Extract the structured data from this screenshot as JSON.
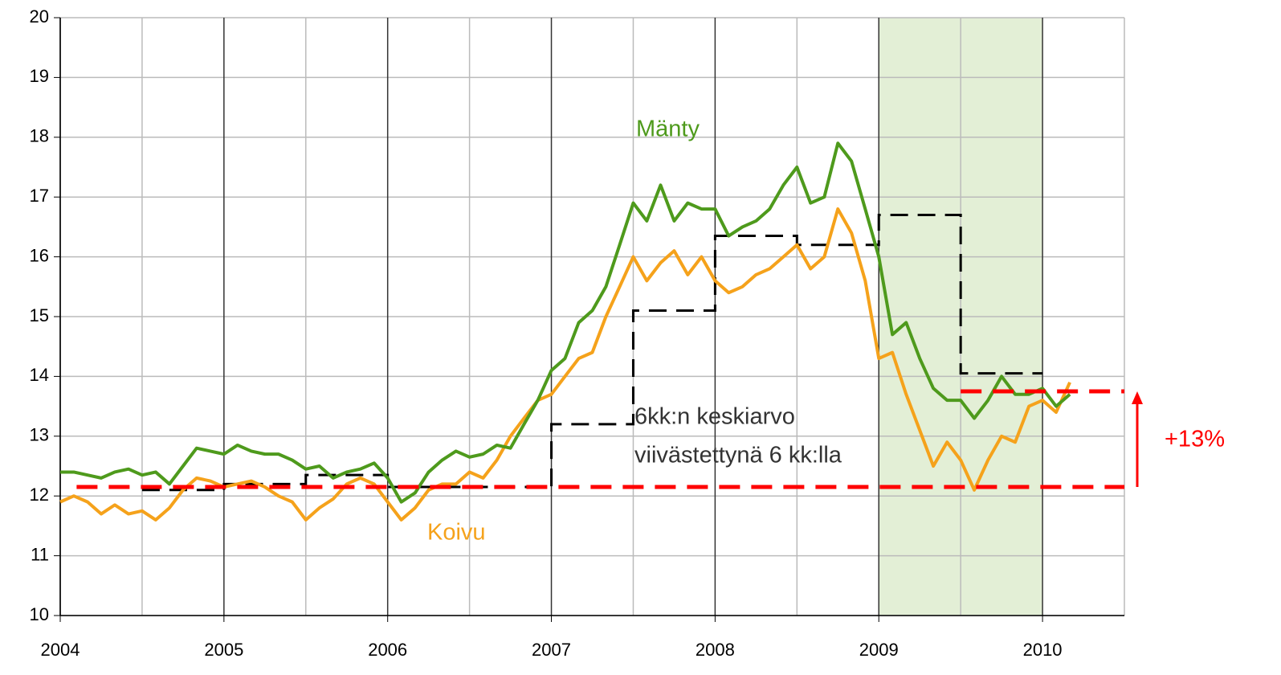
{
  "chart_data": {
    "type": "line",
    "xlim": [
      2004,
      2010.5
    ],
    "xticks": [
      2004,
      2005,
      2006,
      2007,
      2008,
      2009,
      2010
    ],
    "xminorticks": [
      2004.5,
      2005.5,
      2006.5,
      2007.5,
      2008.5,
      2009.5,
      2010.5
    ],
    "ylim": [
      10,
      20
    ],
    "yticks": [
      10,
      11,
      12,
      13,
      14,
      15,
      16,
      17,
      18,
      19,
      20
    ],
    "grid": true,
    "shaded_range": [
      2009,
      2010
    ],
    "shaded_color": "#e3efd6",
    "x": [
      2004.0,
      2004.083,
      2004.167,
      2004.25,
      2004.333,
      2004.417,
      2004.5,
      2004.583,
      2004.667,
      2004.75,
      2004.833,
      2004.917,
      2005.0,
      2005.083,
      2005.167,
      2005.25,
      2005.333,
      2005.417,
      2005.5,
      2005.583,
      2005.667,
      2005.75,
      2005.833,
      2005.917,
      2006.0,
      2006.083,
      2006.167,
      2006.25,
      2006.333,
      2006.417,
      2006.5,
      2006.583,
      2006.667,
      2006.75,
      2006.833,
      2006.917,
      2007.0,
      2007.083,
      2007.167,
      2007.25,
      2007.333,
      2007.417,
      2007.5,
      2007.583,
      2007.667,
      2007.75,
      2007.833,
      2007.917,
      2008.0,
      2008.083,
      2008.167,
      2008.25,
      2008.333,
      2008.417,
      2008.5,
      2008.583,
      2008.667,
      2008.75,
      2008.833,
      2008.917,
      2009.0,
      2009.083,
      2009.167,
      2009.25,
      2009.333,
      2009.417,
      2009.5,
      2009.583,
      2009.667,
      2009.75,
      2009.833,
      2009.917,
      2010.0,
      2010.083,
      2010.167
    ],
    "series": [
      {
        "name": "Mänty",
        "color": "#4e9a1c",
        "values": [
          12.4,
          12.4,
          12.35,
          12.3,
          12.4,
          12.45,
          12.35,
          12.4,
          12.2,
          12.5,
          12.8,
          12.75,
          12.7,
          12.85,
          12.75,
          12.7,
          12.7,
          12.6,
          12.45,
          12.5,
          12.3,
          12.4,
          12.45,
          12.55,
          12.3,
          11.9,
          12.05,
          12.4,
          12.6,
          12.75,
          12.65,
          12.7,
          12.85,
          12.8,
          13.2,
          13.6,
          14.1,
          14.3,
          14.9,
          15.1,
          15.5,
          16.2,
          16.9,
          16.6,
          17.2,
          16.6,
          16.9,
          16.8,
          16.8,
          16.35,
          16.5,
          16.6,
          16.8,
          17.2,
          17.5,
          16.9,
          17.0,
          17.9,
          17.6,
          16.8,
          16.0,
          14.7,
          14.9,
          14.3,
          13.8,
          13.6,
          13.6,
          13.3,
          13.6,
          14.0,
          13.7,
          13.7,
          13.8,
          13.5,
          13.7
        ]
      },
      {
        "name": "Koivu",
        "color": "#f5a21b",
        "values": [
          11.9,
          12.0,
          11.9,
          11.7,
          11.85,
          11.7,
          11.75,
          11.6,
          11.8,
          12.1,
          12.3,
          12.25,
          12.15,
          12.2,
          12.25,
          12.15,
          12.0,
          11.9,
          11.6,
          11.8,
          11.95,
          12.2,
          12.3,
          12.2,
          11.9,
          11.6,
          11.8,
          12.1,
          12.2,
          12.2,
          12.4,
          12.3,
          12.6,
          13.0,
          13.3,
          13.6,
          13.7,
          14.0,
          14.3,
          14.4,
          15.0,
          15.5,
          16.0,
          15.6,
          15.9,
          16.1,
          15.7,
          16.0,
          15.6,
          15.4,
          15.5,
          15.7,
          15.8,
          16.0,
          16.2,
          15.8,
          16.0,
          16.8,
          16.4,
          15.6,
          14.3,
          14.4,
          13.7,
          13.1,
          12.5,
          12.9,
          12.6,
          12.1,
          12.6,
          13.0,
          12.9,
          13.5,
          13.6,
          13.4,
          13.9
        ]
      }
    ],
    "step": {
      "color": "#000000",
      "bins": [
        2004.5,
        2005,
        2005.5,
        2006,
        2007,
        2007.5,
        2008,
        2008.5,
        2009,
        2009.5,
        2010
      ],
      "values": [
        12.1,
        12.2,
        12.35,
        12.15,
        13.2,
        15.1,
        16.35,
        16.2,
        16.7,
        14.05
      ]
    },
    "reference_lines": [
      {
        "value": 12.15,
        "x": [
          2004.1,
          2010.5
        ],
        "color": "#ff0000"
      },
      {
        "value": 13.75,
        "x": [
          2009.5,
          2010.5
        ],
        "color": "#ff0000"
      }
    ],
    "annotations": {
      "manty": "Mänty",
      "koivu": "Koivu",
      "avg_line1": "6kk:n keskiarvo",
      "avg_line2": "viivästettynä 6 kk:lla",
      "change": "+13%"
    }
  }
}
